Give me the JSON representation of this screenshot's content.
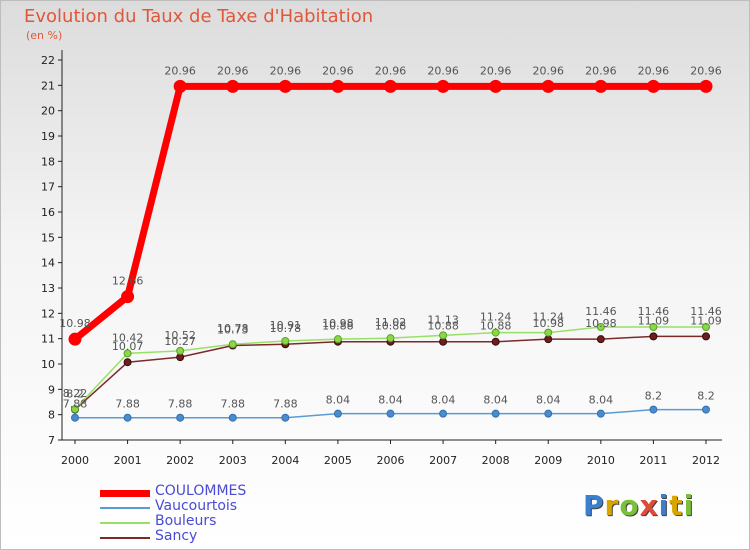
{
  "page": {
    "title": "Evolution du Taux de Taxe d'Habitation",
    "subtitle": "(en %)"
  },
  "chart_data": {
    "type": "line",
    "title": "Evolution du Taux de Taxe d'Habitation",
    "ylabel": "(en %)",
    "xlabel": "",
    "x": [
      "2000",
      "2001",
      "2002",
      "2003",
      "2004",
      "2005",
      "2006",
      "2007",
      "2008",
      "2009",
      "2010",
      "2011",
      "2012"
    ],
    "y_ticks": [
      "7",
      "8",
      "9",
      "10",
      "11",
      "12",
      "13",
      "14",
      "15",
      "16",
      "17",
      "18",
      "19",
      "20",
      "21",
      "22"
    ],
    "ylim": [
      7,
      22
    ],
    "grid": false,
    "legend_position": "bottom-left",
    "series": [
      {
        "name": "COULOMMES",
        "color": "#ff0000",
        "values": [
          10.98,
          12.66,
          20.96,
          20.96,
          20.96,
          20.96,
          20.96,
          20.96,
          20.96,
          20.96,
          20.96,
          20.96,
          20.96
        ]
      },
      {
        "name": "Vaucourtois",
        "color": "#5b9bd5",
        "values": [
          7.88,
          7.88,
          7.88,
          7.88,
          7.88,
          8.04,
          8.04,
          8.04,
          8.04,
          8.04,
          8.04,
          8.2,
          8.2
        ]
      },
      {
        "name": "Bouleurs",
        "color": "#99e066",
        "values": [
          8.22,
          10.42,
          10.52,
          10.78,
          10.91,
          10.98,
          11.02,
          11.13,
          11.24,
          11.24,
          11.46,
          11.46,
          11.46
        ]
      },
      {
        "name": "Sancy",
        "color": "#7b2a2a",
        "values": [
          8.2,
          10.07,
          10.27,
          10.73,
          10.78,
          10.88,
          10.88,
          10.88,
          10.88,
          10.98,
          10.98,
          11.09,
          11.09
        ]
      }
    ]
  },
  "logo": {
    "text": "Proxiti",
    "letters": [
      {
        "ch": "P",
        "color": "#3b7fd0"
      },
      {
        "ch": "r",
        "color": "#d9a500"
      },
      {
        "ch": "o",
        "color": "#7bbf3a"
      },
      {
        "ch": "x",
        "color": "#e04a3a"
      },
      {
        "ch": "i",
        "color": "#3b7fd0"
      },
      {
        "ch": "t",
        "color": "#d9a500"
      },
      {
        "ch": "i",
        "color": "#7bbf3a"
      }
    ]
  }
}
